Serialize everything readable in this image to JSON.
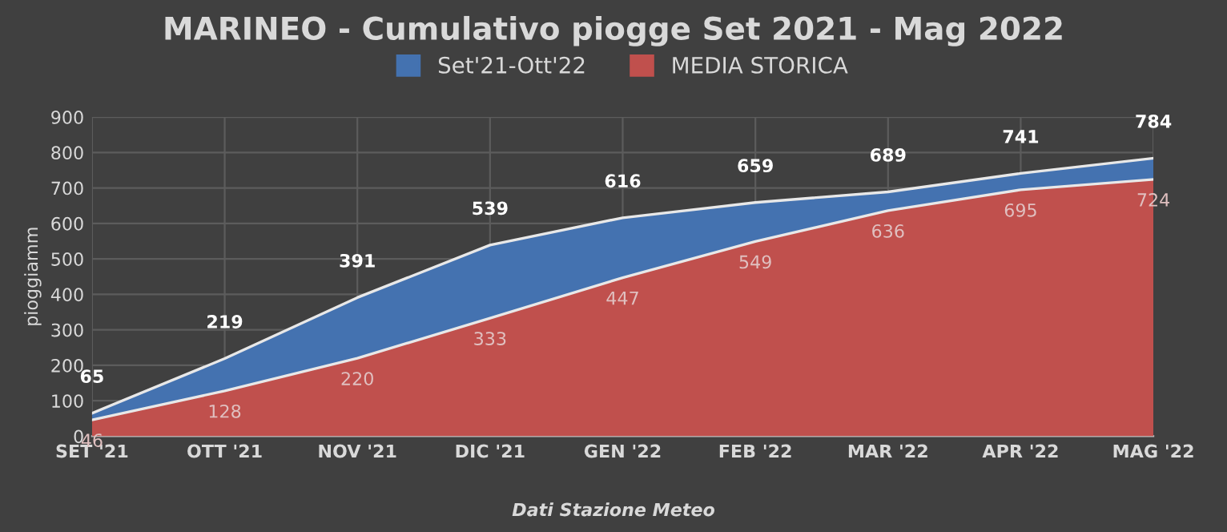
{
  "chart_data": {
    "type": "area",
    "title": "MARINEO - Cumulativo piogge Set 2021 - Mag 2022",
    "ylabel": "pioggiamm",
    "categories": [
      "SET '21",
      "OTT '21",
      "NOV '21",
      "DIC '21",
      "GEN '22",
      "FEB '22",
      "MAR '22",
      "APR '22",
      "MAG '22"
    ],
    "series": [
      {
        "name": "Set'21-Ott'22",
        "color": "#4472b0",
        "values": [
          65,
          219,
          391,
          539,
          616,
          659,
          689,
          741,
          784
        ]
      },
      {
        "name": "MEDIA STORICA",
        "color": "#c0504d",
        "values": [
          46,
          128,
          220,
          333,
          447,
          549,
          636,
          695,
          724
        ]
      }
    ],
    "ylim": [
      0,
      900
    ],
    "yticks": [
      0,
      100,
      200,
      300,
      400,
      500,
      600,
      700,
      800,
      900
    ],
    "grid": true,
    "legend": "top",
    "data_labels": true,
    "annotations": [
      "Dati Stazione Meteo"
    ]
  }
}
